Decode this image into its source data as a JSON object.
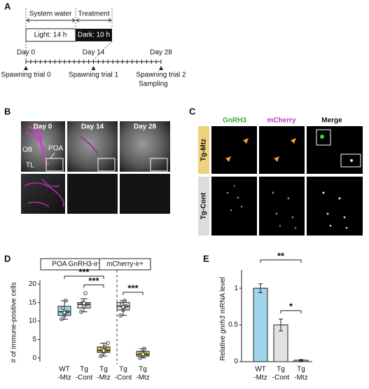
{
  "figure": {
    "panel_a": {
      "letter": "A",
      "system_water": "System water",
      "treatment": "Treatment",
      "light": "Light: 14 h",
      "dark": "Dark: 10 h",
      "days": [
        "Day 0",
        "Day 14",
        "Day 28"
      ],
      "trials": [
        "Spawning trial 0",
        "Spawning trial 1",
        "Spawning trial 2"
      ],
      "sampling": "Sampling"
    },
    "panel_b": {
      "letter": "B",
      "days": [
        "Day 0",
        "Day 14",
        "Day 28"
      ],
      "regions": [
        "OB",
        "POA",
        "TL"
      ]
    },
    "panel_c": {
      "letter": "C",
      "channels": [
        "GnRH3",
        "mCherry",
        "Merge"
      ],
      "rows": [
        "Tg-Mtz",
        "Tg-Cont"
      ]
    }
  },
  "chart_data": [
    {
      "type": "box",
      "letter": "D",
      "ylabel": "# of immune-positive cells",
      "ylim": [
        -1,
        21
      ],
      "yticks": [
        0,
        5,
        10,
        15,
        20
      ],
      "groups": [
        {
          "name": "POA GnRH3-ir+",
          "categories": [
            [
              "WT",
              "-Mtz"
            ],
            [
              "Tg",
              "-Cont"
            ],
            [
              "Tg",
              "-Mtz"
            ]
          ],
          "colors": [
            "#9fd4ea",
            "#e2e2e2",
            "#e8c35a"
          ],
          "boxes": [
            {
              "min": 10.5,
              "q1": 11.5,
              "median": 12.5,
              "q3": 14,
              "max": 15.5,
              "mean": 12.3,
              "points": [
                10.5,
                11.5,
                12.5,
                13.5,
                15.5
              ]
            },
            {
              "min": 12.5,
              "q1": 13.5,
              "median": 14.5,
              "q3": 15,
              "max": 16,
              "mean": 14.8,
              "points": [
                12.5,
                14,
                14.5,
                15,
                17.5
              ]
            },
            {
              "min": 0.5,
              "q1": 1.5,
              "median": 2,
              "q3": 3,
              "max": 4,
              "mean": 2,
              "points": [
                0.5,
                1.5,
                2,
                2.5,
                3,
                4
              ]
            }
          ],
          "annotations": [
            {
              "text": "***",
              "between": [
                0,
                2
              ]
            },
            {
              "text": "***",
              "between": [
                1,
                2
              ]
            }
          ]
        },
        {
          "name": "mCherry-ir+",
          "categories": [
            [
              "Tg",
              "-Cont"
            ],
            [
              "Tg",
              "-Mtz"
            ]
          ],
          "colors": [
            "#e2e2e2",
            "#e8c35a"
          ],
          "boxes": [
            {
              "min": 11.5,
              "q1": 13,
              "median": 14,
              "q3": 15,
              "max": 15.5,
              "mean": 13.8,
              "points": [
                11.5,
                13,
                14,
                14.5,
                15.5
              ]
            },
            {
              "min": 0,
              "q1": 0.5,
              "median": 1,
              "q3": 1.8,
              "max": 2.5,
              "mean": 1,
              "points": [
                0,
                0.5,
                1,
                1.5,
                2.5
              ]
            }
          ],
          "annotations": [
            {
              "text": "***",
              "between": [
                0,
                1
              ]
            }
          ]
        }
      ]
    },
    {
      "type": "bar",
      "letter": "E",
      "ylabel": [
        "Relative ",
        "gnrh3",
        " mRNA level"
      ],
      "ylim": [
        0,
        1.25
      ],
      "yticks": [
        0,
        0.5,
        1
      ],
      "categories": [
        [
          "WT",
          "-Mtz"
        ],
        [
          "Tg",
          "-Cont"
        ],
        [
          "Tg",
          "-Mtz"
        ]
      ],
      "values": [
        1,
        0.5,
        0.02
      ],
      "errors": [
        0.06,
        0.08,
        0.01
      ],
      "colors": [
        "#9fd4ea",
        "#e2e2e2",
        "#e8c35a"
      ],
      "annotations": [
        {
          "text": "**",
          "between": [
            0,
            2
          ]
        },
        {
          "text": "*",
          "between": [
            1,
            2
          ]
        }
      ]
    }
  ]
}
